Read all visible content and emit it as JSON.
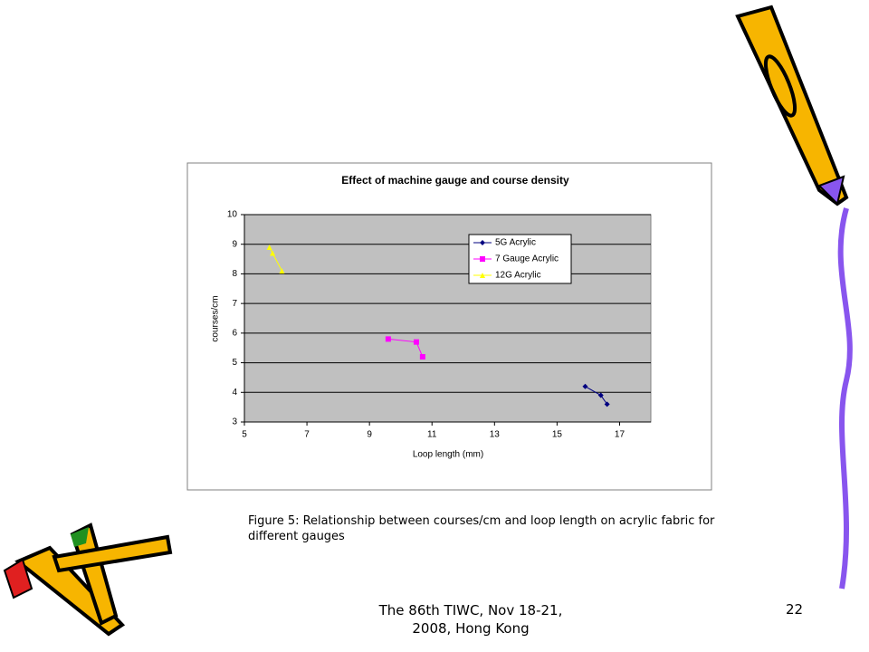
{
  "chart_data": {
    "type": "line",
    "title": "Effect of machine gauge and course density",
    "x_label": "Loop length (mm)",
    "y_label": "courses/cm",
    "xlim": [
      5,
      18
    ],
    "xticks": [
      5,
      7,
      9,
      11,
      13,
      15,
      17
    ],
    "ylim": [
      3,
      10
    ],
    "yticks": [
      3,
      4,
      5,
      6,
      7,
      8,
      9,
      10
    ],
    "grid": true,
    "legend": "upper right",
    "series": [
      {
        "name": "5G Acrylic",
        "color": "#000080",
        "marker": "diamond",
        "x": [
          15.9,
          16.4,
          16.6
        ],
        "values": [
          4.2,
          3.9,
          3.6
        ]
      },
      {
        "name": "7 Gauge Acrylic",
        "color": "#ff00ff",
        "marker": "square",
        "x": [
          9.6,
          10.5,
          10.7
        ],
        "values": [
          5.8,
          5.7,
          5.2
        ]
      },
      {
        "name": "12G Acrylic",
        "color": "#ffff00",
        "marker": "triangle",
        "x": [
          5.8,
          5.9,
          6.2
        ],
        "values": [
          8.9,
          8.7,
          8.1
        ]
      }
    ]
  },
  "caption": "Figure 5: Relationship between courses/cm and loop length on acrylic fabric for different gauges",
  "footer": "The 86th TIWC, Nov 18-21, 2008, Hong Kong",
  "page_number": "22"
}
